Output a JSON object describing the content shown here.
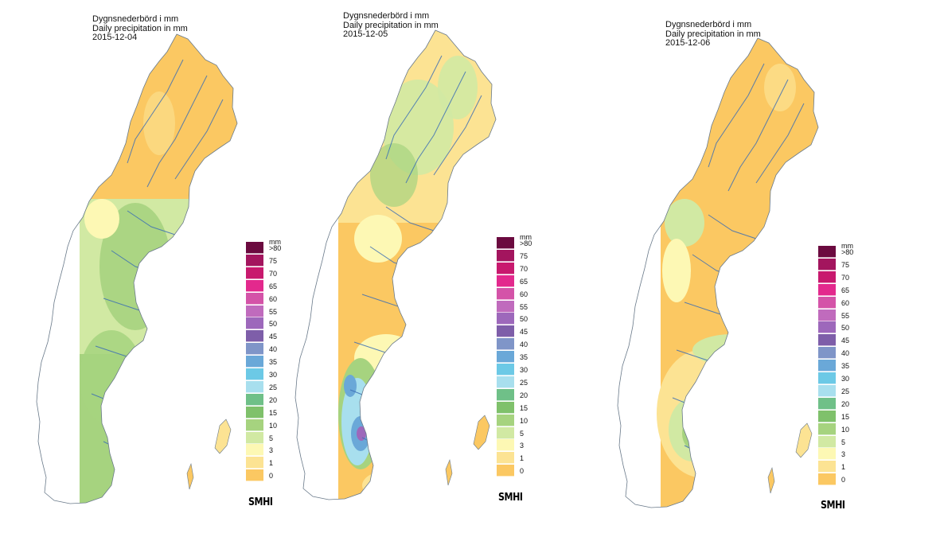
{
  "legend_scale": {
    "unit": "mm",
    "classes": [
      {
        "label": ">80",
        "color": "#6b0a3f"
      },
      {
        "label": "75",
        "color": "#a3155e"
      },
      {
        "label": "70",
        "color": "#c8196e"
      },
      {
        "label": "65",
        "color": "#e3298d"
      },
      {
        "label": "60",
        "color": "#d453a8"
      },
      {
        "label": "55",
        "color": "#c06bbd"
      },
      {
        "label": "50",
        "color": "#9d68bb"
      },
      {
        "label": "45",
        "color": "#7e5ea9"
      },
      {
        "label": "40",
        "color": "#7f95c8"
      },
      {
        "label": "35",
        "color": "#6aa8d8"
      },
      {
        "label": "30",
        "color": "#6cc9e6"
      },
      {
        "label": "25",
        "color": "#a8dfee"
      },
      {
        "label": "20",
        "color": "#6fc088"
      },
      {
        "label": "15",
        "color": "#7fc16b"
      },
      {
        "label": "10",
        "color": "#a6d37f"
      },
      {
        "label": "5",
        "color": "#d1e9a3"
      },
      {
        "label": "3",
        "color": "#fdf8b4"
      },
      {
        "label": "1",
        "color": "#fce393"
      },
      {
        "label": "0",
        "color": "#fbc862"
      }
    ]
  },
  "panels": [
    {
      "title_sv": "Dygnsnederbörd i mm",
      "title_en": "Daily precipitation in mm",
      "date": "2015-12-04",
      "logo": "SMHI",
      "regions": {
        "north": "#fbc862",
        "middle": "#d1e9a3",
        "south": "#a6d37f",
        "east_coast": "#fce393"
      }
    },
    {
      "title_sv": "Dygnsnederbörd i mm",
      "title_en": "Daily precipitation in mm",
      "date": "2015-12-05",
      "logo": "SMHI",
      "regions": {
        "north": "#fce393",
        "middle": "#fbc862",
        "south": "#fbc862",
        "east_coast": "#fbc862"
      }
    },
    {
      "title_sv": "Dygnsnederbörd i mm",
      "title_en": "Daily precipitation in mm",
      "date": "2015-12-06",
      "logo": "SMHI",
      "regions": {
        "north": "#fbc862",
        "middle": "#fbc862",
        "south": "#fce393",
        "east_coast": "#fbc862"
      }
    }
  ]
}
